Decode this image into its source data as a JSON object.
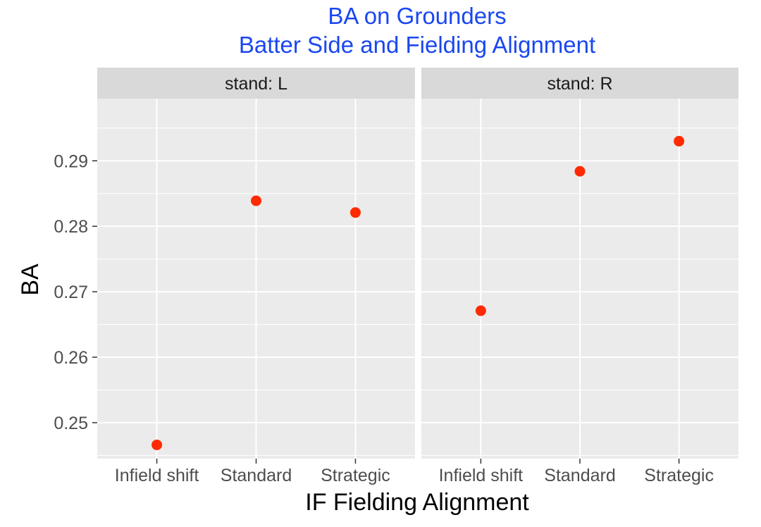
{
  "chart_data": {
    "type": "scatter",
    "title_lines": [
      "BA on Grounders",
      "Batter Side and Fielding Alignment"
    ],
    "xlabel": "IF Fielding Alignment",
    "ylabel": "BA",
    "categories": [
      "Infield shift",
      "Standard",
      "Strategic"
    ],
    "ylim": [
      0.2445,
      0.2995
    ],
    "yticks": [
      0.25,
      0.26,
      0.27,
      0.28,
      0.29
    ],
    "ytick_labels": [
      "0.25",
      "0.26",
      "0.27",
      "0.28",
      "0.29"
    ],
    "grid": true,
    "point_color": "#ff2a00",
    "panels": [
      {
        "strip": "stand: L",
        "values": [
          0.2466,
          0.2839,
          0.2821
        ]
      },
      {
        "strip": "stand: R",
        "values": [
          0.2671,
          0.2884,
          0.293
        ]
      }
    ]
  }
}
